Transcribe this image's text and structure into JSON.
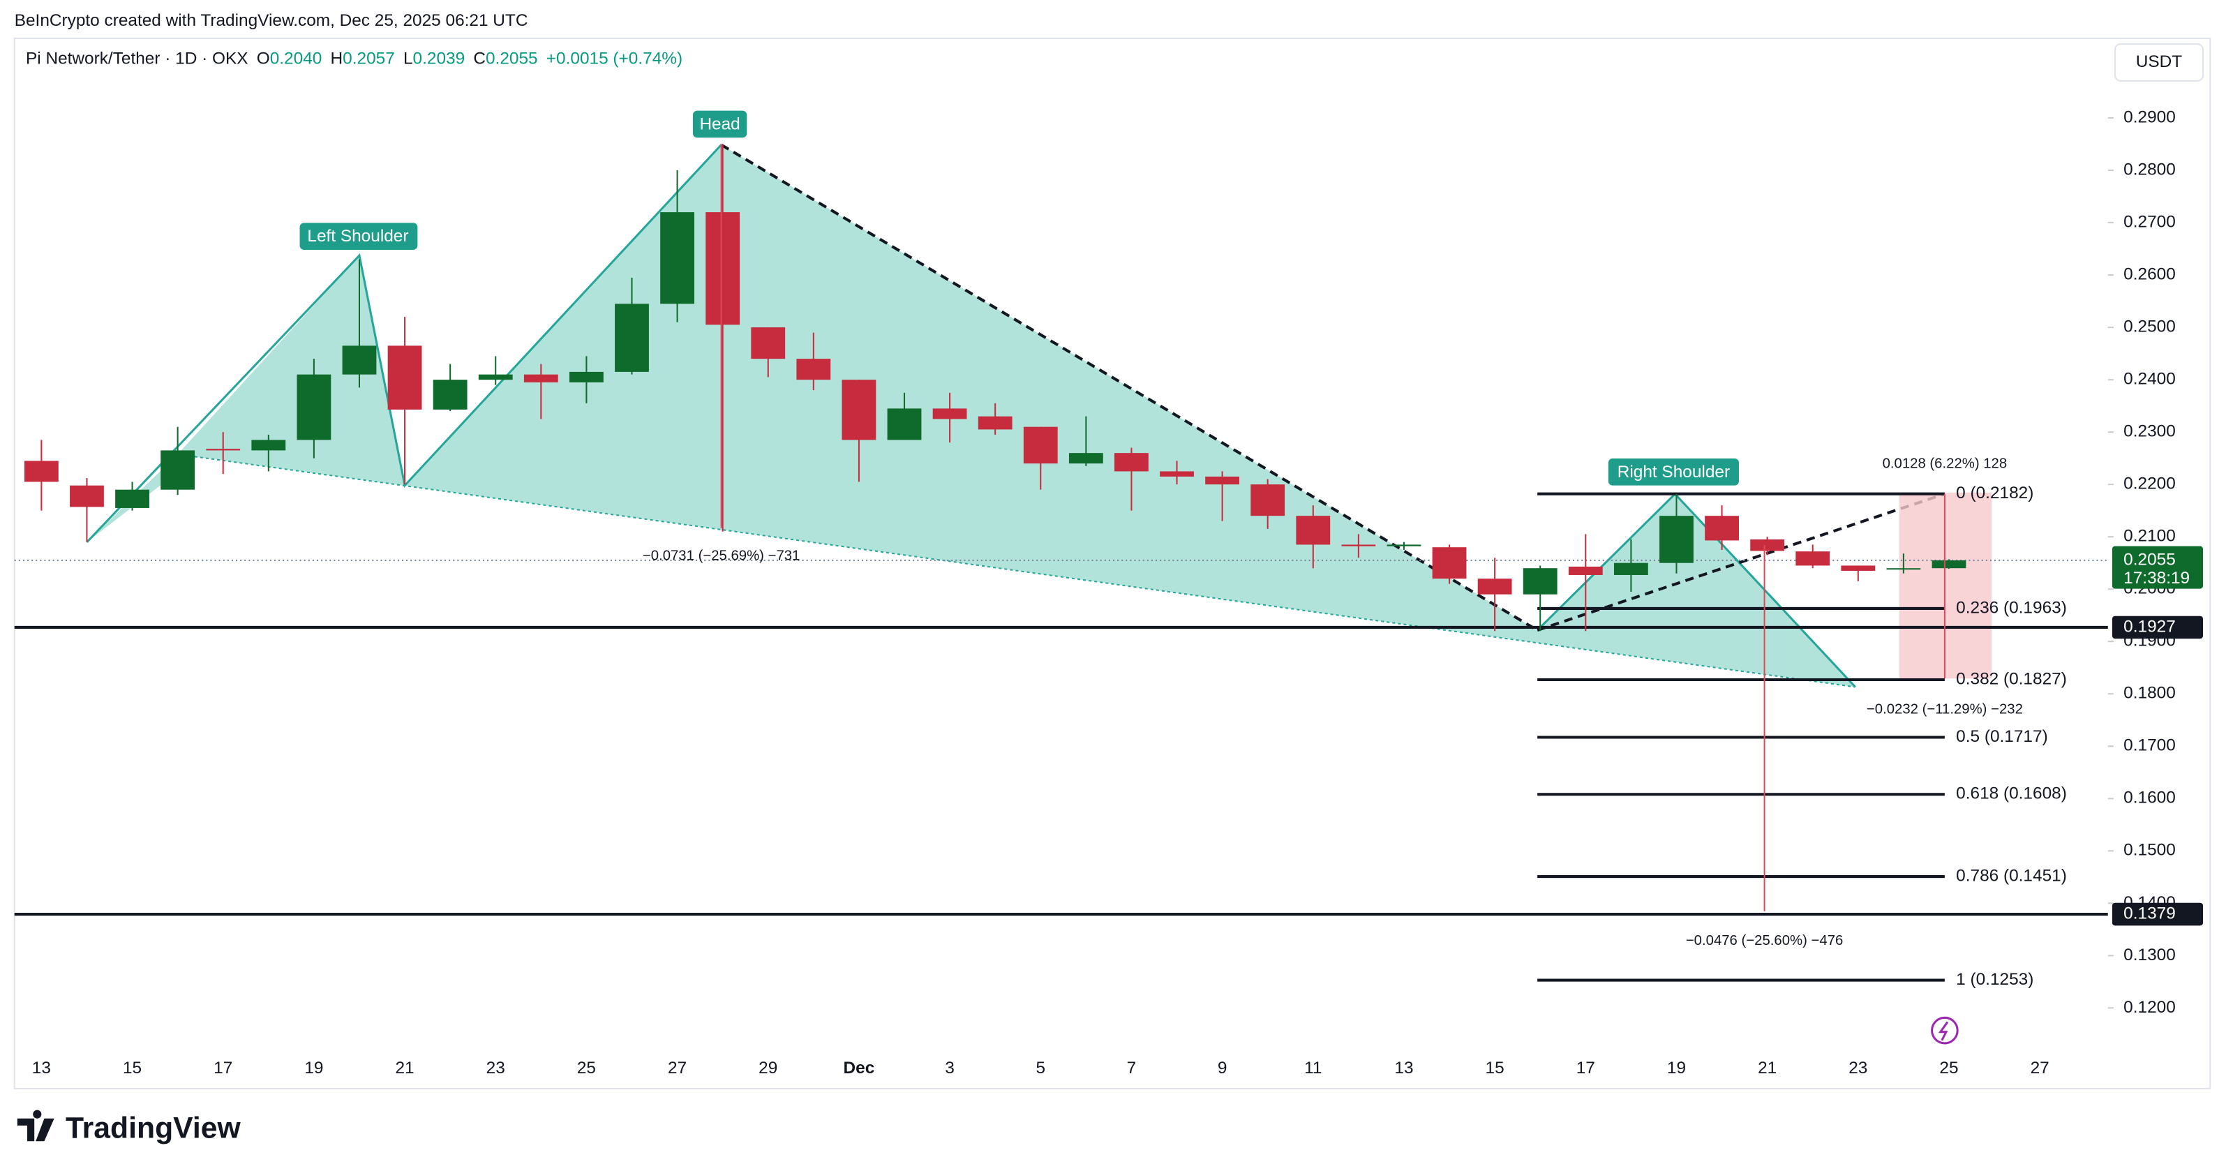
{
  "header": {
    "credit": "BeInCrypto created with TradingView.com, Dec 25, 2025 06:21 UTC",
    "symbol": "Pi Network/Tether · 1D · OKX",
    "ohlc": [
      "O",
      "0.2040",
      "H",
      "0.2057",
      "L",
      "0.2039",
      "C",
      "0.2055"
    ],
    "change": "+0.0015 (+0.74%)",
    "currency": "USDT"
  },
  "chart_data": {
    "type": "candlestick",
    "categories": [
      "13",
      null,
      "15",
      null,
      "17",
      null,
      "19",
      null,
      "21",
      null,
      "23",
      null,
      "25",
      null,
      "27",
      null,
      "29",
      null,
      "Dec",
      null,
      "3",
      null,
      "5",
      null,
      "7",
      null,
      "9",
      null,
      "11",
      null,
      "13",
      null,
      "15",
      null,
      "17",
      null,
      "19",
      null,
      "21",
      null,
      "23",
      null,
      "25",
      null,
      "27"
    ],
    "open": [
      0.2245,
      0.2198,
      0.2155,
      0.219,
      0.2268,
      0.2265,
      0.2285,
      0.241,
      0.2465,
      0.2343,
      0.24,
      0.241,
      0.2395,
      0.2415,
      0.2545,
      0.272,
      0.25,
      0.244,
      0.24,
      0.2285,
      0.2345,
      0.233,
      0.231,
      0.224,
      0.226,
      0.2225,
      0.2215,
      0.22,
      0.214,
      0.2085,
      0.2082,
      0.208,
      0.202,
      0.199,
      0.2043,
      0.2027,
      0.205,
      0.214,
      0.2095,
      0.2072,
      0.2045,
      0.2038,
      0.204,
      null,
      null
    ],
    "high": [
      0.2285,
      0.2212,
      0.2205,
      0.231,
      0.23,
      0.2295,
      0.244,
      0.263,
      0.252,
      0.243,
      0.2445,
      0.243,
      0.2445,
      0.2595,
      0.28,
      0.285,
      0.25,
      0.249,
      0.24,
      0.2375,
      0.2375,
      0.2355,
      0.231,
      0.233,
      0.227,
      0.2245,
      0.2225,
      0.221,
      0.216,
      0.2105,
      0.209,
      0.2085,
      0.206,
      0.2045,
      0.2105,
      0.2095,
      0.2182,
      0.216,
      0.21,
      0.2085,
      0.2045,
      0.2068,
      0.2057,
      null,
      null
    ],
    "low": [
      0.215,
      0.209,
      0.215,
      0.218,
      0.222,
      0.2225,
      0.225,
      0.2385,
      0.22,
      0.234,
      0.239,
      0.2325,
      0.2355,
      0.241,
      0.251,
      0.211,
      0.2405,
      0.238,
      0.2205,
      0.2285,
      0.228,
      0.2295,
      0.219,
      0.2235,
      0.215,
      0.22,
      0.213,
      0.2115,
      0.204,
      0.206,
      0.2075,
      0.201,
      0.192,
      0.192,
      0.192,
      0.1995,
      0.203,
      0.2075,
      0.2065,
      0.204,
      0.2015,
      0.203,
      0.2039,
      null,
      null
    ],
    "close": [
      0.2205,
      0.2157,
      0.219,
      0.2265,
      0.2265,
      0.2285,
      0.241,
      0.2465,
      0.2343,
      0.24,
      0.241,
      0.2395,
      0.2415,
      0.2545,
      0.272,
      0.2505,
      0.244,
      0.24,
      0.2285,
      0.2345,
      0.2325,
      0.2305,
      0.224,
      0.226,
      0.2225,
      0.2215,
      0.22,
      0.214,
      0.2085,
      0.2082,
      0.2085,
      0.202,
      0.199,
      0.204,
      0.2027,
      0.205,
      0.214,
      0.2093,
      0.2073,
      0.2045,
      0.2035,
      0.204,
      0.2055,
      null,
      null
    ],
    "up_color": "#0f6b2b",
    "down_color": "#c62c3d",
    "ylim": [
      0.1119,
      0.3044
    ],
    "yticks": [
      {
        "value": 0.12,
        "label": "0.1200"
      },
      {
        "value": 0.13,
        "label": "0.1300"
      },
      {
        "value": 0.14,
        "label": "0.1400"
      },
      {
        "value": 0.15,
        "label": "0.1500"
      },
      {
        "value": 0.16,
        "label": "0.1600"
      },
      {
        "value": 0.17,
        "label": "0.1700"
      },
      {
        "value": 0.18,
        "label": "0.1800"
      },
      {
        "value": 0.19,
        "label": "0.1900"
      },
      {
        "value": 0.2,
        "label": "0.2000"
      },
      {
        "value": 0.21,
        "label": "0.2100"
      },
      {
        "value": 0.22,
        "label": "0.2200"
      },
      {
        "value": 0.23,
        "label": "0.2300"
      },
      {
        "value": 0.24,
        "label": "0.2400"
      },
      {
        "value": 0.25,
        "label": "0.2500"
      },
      {
        "value": 0.26,
        "label": "0.2600"
      },
      {
        "value": 0.27,
        "label": "0.2700"
      },
      {
        "value": 0.28,
        "label": "0.2800"
      },
      {
        "value": 0.29,
        "label": "0.2900"
      }
    ],
    "price_lines": [
      0.1927,
      0.1379
    ],
    "current_price": 0.2055,
    "countdown": "17:38:19",
    "fib_levels": [
      {
        "value": 0.2182,
        "label": "0 (0.2182)"
      },
      {
        "value": 0.1963,
        "label": "0.236 (0.1963)"
      },
      {
        "value": 0.1827,
        "label": "0.382 (0.1827)"
      },
      {
        "value": 0.1717,
        "label": "0.5 (0.1717)"
      },
      {
        "value": 0.1608,
        "label": "0.618 (0.1608)"
      },
      {
        "value": 0.1451,
        "label": "0.786 (0.1451)"
      },
      {
        "value": 0.1253,
        "label": "1 (0.1253)"
      }
    ],
    "pattern_labels": [
      "Left Shoulder",
      "Head",
      "Right Shoulder"
    ],
    "measurements": [
      "−0.0731 (−25.69%) −731",
      "0.0128 (6.22%) 128",
      "−0.0232 (−11.29%) −232",
      "−0.0476 (−25.60%) −476"
    ]
  },
  "footer": {
    "logo": "TradingView"
  }
}
